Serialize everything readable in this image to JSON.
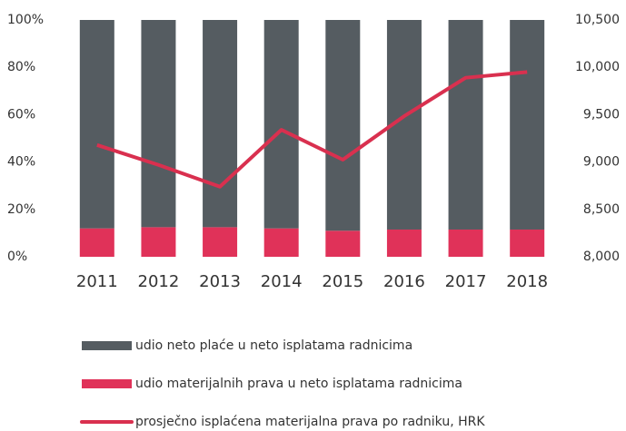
{
  "chart_data": {
    "type": "bar",
    "stacked": true,
    "categories": [
      "2011",
      "2012",
      "2013",
      "2014",
      "2015",
      "2016",
      "2017",
      "2018"
    ],
    "series": [
      {
        "name": "udio neto plaće u neto isplatama radnicima",
        "color": "#555c61",
        "values": [
          88,
          87.5,
          87.5,
          88,
          89,
          88.5,
          88.5,
          88.5
        ]
      },
      {
        "name": "udio materijalnih prava u neto isplatama radnicima",
        "color": "#e03259",
        "values": [
          12,
          12.5,
          12.5,
          12,
          11,
          11.5,
          11.5,
          11.5
        ]
      },
      {
        "name": "prosječno isplaćena materijalna prava po radniku, HRK",
        "color": "#d9304f",
        "type": "line",
        "axis": "y2",
        "values": [
          9180,
          8970,
          8740,
          9340,
          9025,
          9485,
          9890,
          9950
        ]
      }
    ],
    "ylim": [
      0,
      100
    ],
    "yticks": [
      {
        "value": 0,
        "label": "0%"
      },
      {
        "value": 20,
        "label": "20%"
      },
      {
        "value": 40,
        "label": "40%"
      },
      {
        "value": 60,
        "label": "60%"
      },
      {
        "value": 80,
        "label": "80%"
      },
      {
        "value": 100,
        "label": "100%"
      }
    ],
    "y2lim": [
      8000,
      10500
    ],
    "y2ticks": [
      {
        "value": 8000,
        "label": "8,000"
      },
      {
        "value": 8500,
        "label": "8,500"
      },
      {
        "value": 9000,
        "label": "9,000"
      },
      {
        "value": 9500,
        "label": "9,500"
      },
      {
        "value": 10000,
        "label": "10,000"
      },
      {
        "value": 10500,
        "label": "10,500"
      }
    ],
    "legend": "bottom"
  }
}
